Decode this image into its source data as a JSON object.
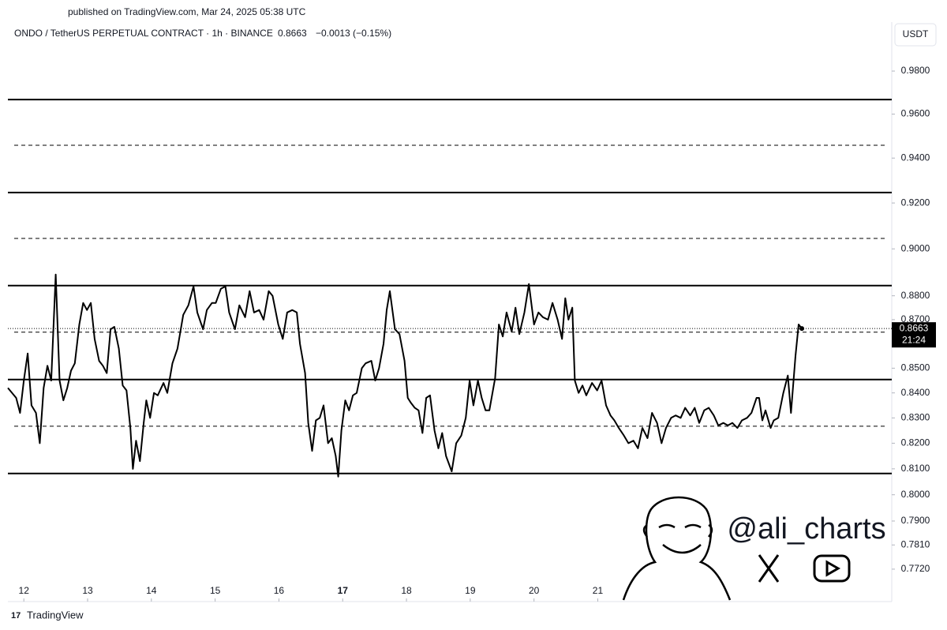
{
  "chart_data": {
    "type": "line",
    "published": "published on TradingView.com, Mar 24, 2025 05:38 UTC",
    "title": "ONDO / TetherUS PERPETUAL CONTRACT · 1h · BINANCE",
    "last_price": 0.8663,
    "change": "−0.0013 (−0.15%)",
    "currency": "USDT",
    "countdown": "21:24",
    "watermark": "@ali_charts",
    "brand": "TradingView",
    "color": "#000000",
    "log_scale": true,
    "xlim": [
      11.75,
      25.61
    ],
    "ylim": [
      0.7601,
      1.0025
    ],
    "xticks": [
      12,
      13,
      14,
      15,
      16,
      17,
      18,
      19,
      20,
      21
    ],
    "emphasized_xtick": 5,
    "yticks": [
      {
        "value": 0.98,
        "label": "0.9800"
      },
      {
        "value": 0.96,
        "label": "0.9600"
      },
      {
        "value": 0.94,
        "label": "0.9400"
      },
      {
        "value": 0.92,
        "label": "0.9200"
      },
      {
        "value": 0.9,
        "label": "0.9000"
      },
      {
        "value": 0.88,
        "label": "0.8800"
      },
      {
        "value": 0.87,
        "label": "0.8700"
      },
      {
        "value": 0.85,
        "label": "0.8500"
      },
      {
        "value": 0.84,
        "label": "0.8400"
      },
      {
        "value": 0.83,
        "label": "0.8300"
      },
      {
        "value": 0.82,
        "label": "0.8200"
      },
      {
        "value": 0.81,
        "label": "0.8100"
      },
      {
        "value": 0.8,
        "label": "0.8000"
      },
      {
        "value": 0.79,
        "label": "0.7900"
      },
      {
        "value": 0.781,
        "label": "0.7810"
      },
      {
        "value": 0.772,
        "label": "0.7720"
      }
    ],
    "levels": [
      {
        "value": 0.9667,
        "style": "solid"
      },
      {
        "value": 0.9458,
        "style": "dashed"
      },
      {
        "value": 0.9246,
        "style": "solid"
      },
      {
        "value": 0.9045,
        "style": "dashed"
      },
      {
        "value": 0.8843,
        "style": "solid"
      },
      {
        "value": 0.8648,
        "style": "dashed"
      },
      {
        "value": 0.8454,
        "style": "solid"
      },
      {
        "value": 0.8267,
        "style": "dashed"
      },
      {
        "value": 0.8082,
        "style": "solid"
      }
    ],
    "x": [
      11.75,
      11.88,
      11.94,
      12.0,
      12.06,
      12.12,
      12.19,
      12.25,
      12.31,
      12.37,
      12.43,
      12.5,
      12.56,
      12.62,
      12.68,
      12.74,
      12.8,
      12.87,
      12.93,
      12.99,
      13.05,
      13.11,
      13.18,
      13.24,
      13.3,
      13.36,
      13.42,
      13.49,
      13.55,
      13.61,
      13.67,
      13.71,
      13.76,
      13.82,
      13.88,
      13.92,
      13.98,
      14.04,
      14.1,
      14.19,
      14.25,
      14.33,
      14.41,
      14.5,
      14.58,
      14.66,
      14.72,
      14.81,
      14.87,
      14.95,
      15.01,
      15.09,
      15.16,
      15.22,
      15.31,
      15.38,
      15.47,
      15.54,
      15.61,
      15.69,
      15.76,
      15.84,
      15.9,
      15.99,
      16.06,
      16.13,
      16.21,
      16.28,
      16.33,
      16.41,
      16.46,
      16.52,
      16.58,
      16.64,
      16.7,
      16.77,
      16.83,
      16.89,
      16.93,
      16.98,
      17.04,
      17.1,
      17.16,
      17.22,
      17.3,
      17.36,
      17.45,
      17.51,
      17.57,
      17.64,
      17.69,
      17.74,
      17.82,
      17.89,
      17.97,
      18.02,
      18.07,
      18.13,
      18.19,
      18.25,
      18.31,
      18.37,
      18.44,
      18.5,
      18.56,
      18.62,
      18.71,
      18.78,
      18.86,
      18.93,
      18.99,
      19.05,
      19.12,
      19.18,
      19.24,
      19.3,
      19.39,
      19.45,
      19.51,
      19.57,
      19.65,
      19.71,
      19.77,
      19.85,
      19.92,
      20.0,
      20.07,
      20.14,
      20.22,
      20.29,
      20.37,
      20.44,
      20.49,
      20.54,
      20.6,
      20.64,
      20.7,
      20.76,
      20.82,
      20.91,
      20.99,
      21.06,
      21.13,
      21.2,
      21.26,
      21.33,
      21.41,
      21.48,
      21.56,
      21.63,
      21.7,
      21.78,
      21.85,
      21.93,
      22.0,
      22.07,
      22.15,
      22.22,
      22.3,
      22.37,
      22.45,
      22.52,
      22.59,
      22.67,
      22.74,
      22.82,
      22.89,
      22.97,
      23.04,
      23.11,
      23.19,
      23.26,
      23.34,
      23.41,
      23.49,
      23.53,
      23.58,
      23.63,
      23.71,
      23.76,
      23.83,
      23.91,
      23.98,
      24.03,
      24.1,
      24.15,
      24.2
    ],
    "values": [
      0.842,
      0.838,
      0.832,
      0.845,
      0.856,
      0.835,
      0.832,
      0.82,
      0.842,
      0.851,
      0.845,
      0.889,
      0.845,
      0.837,
      0.842,
      0.849,
      0.852,
      0.868,
      0.877,
      0.874,
      0.877,
      0.862,
      0.853,
      0.851,
      0.848,
      0.866,
      0.867,
      0.858,
      0.843,
      0.841,
      0.826,
      0.81,
      0.821,
      0.813,
      0.828,
      0.837,
      0.83,
      0.84,
      0.839,
      0.844,
      0.84,
      0.852,
      0.858,
      0.872,
      0.876,
      0.884,
      0.873,
      0.866,
      0.874,
      0.877,
      0.877,
      0.883,
      0.884,
      0.873,
      0.866,
      0.876,
      0.871,
      0.882,
      0.873,
      0.874,
      0.87,
      0.882,
      0.88,
      0.868,
      0.862,
      0.873,
      0.874,
      0.873,
      0.86,
      0.848,
      0.828,
      0.817,
      0.829,
      0.83,
      0.835,
      0.82,
      0.822,
      0.815,
      0.807,
      0.825,
      0.837,
      0.833,
      0.839,
      0.84,
      0.85,
      0.852,
      0.853,
      0.845,
      0.85,
      0.86,
      0.874,
      0.882,
      0.866,
      0.864,
      0.853,
      0.838,
      0.836,
      0.834,
      0.833,
      0.824,
      0.838,
      0.839,
      0.825,
      0.818,
      0.824,
      0.815,
      0.809,
      0.82,
      0.823,
      0.83,
      0.845,
      0.835,
      0.845,
      0.838,
      0.833,
      0.833,
      0.846,
      0.868,
      0.863,
      0.873,
      0.865,
      0.875,
      0.864,
      0.873,
      0.885,
      0.868,
      0.873,
      0.871,
      0.87,
      0.877,
      0.87,
      0.862,
      0.879,
      0.87,
      0.875,
      0.845,
      0.84,
      0.843,
      0.839,
      0.844,
      0.841,
      0.845,
      0.835,
      0.831,
      0.829,
      0.826,
      0.823,
      0.82,
      0.821,
      0.818,
      0.826,
      0.822,
      0.832,
      0.828,
      0.82,
      0.826,
      0.83,
      0.831,
      0.83,
      0.834,
      0.831,
      0.834,
      0.828,
      0.833,
      0.834,
      0.831,
      0.827,
      0.828,
      0.827,
      0.828,
      0.826,
      0.829,
      0.83,
      0.832,
      0.838,
      0.838,
      0.829,
      0.833,
      0.826,
      0.829,
      0.83,
      0.84,
      0.847,
      0.832,
      0.855,
      0.868,
      0.8663
    ]
  }
}
